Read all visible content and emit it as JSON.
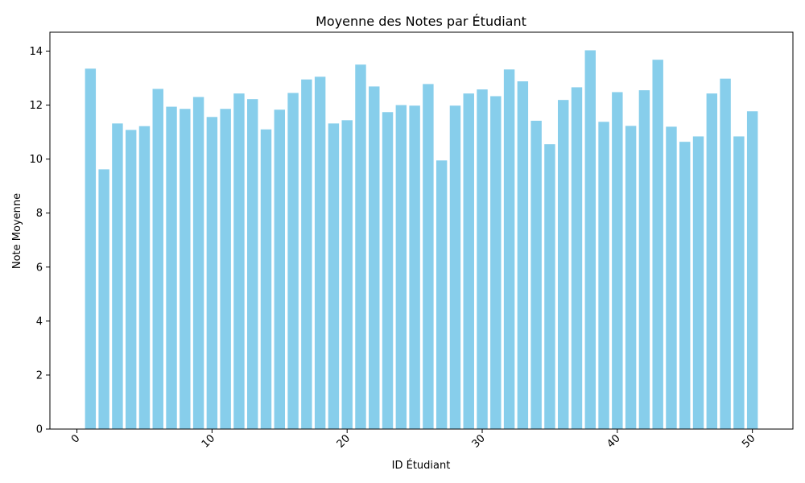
{
  "chart_data": {
    "type": "bar",
    "title": "Moyenne des Notes par Étudiant",
    "xlabel": "ID Étudiant",
    "ylabel": "Note Moyenne",
    "xlim": [
      -2,
      53
    ],
    "ylim": [
      0,
      14.7
    ],
    "xticks": [
      "0",
      "10",
      "20",
      "30",
      "40",
      "50"
    ],
    "yticks": [
      "0",
      "2",
      "4",
      "6",
      "8",
      "10",
      "12",
      "14"
    ],
    "bar_color": "#87CEEB",
    "grid": false,
    "x": [
      1,
      2,
      3,
      4,
      5,
      6,
      7,
      8,
      9,
      10,
      11,
      12,
      13,
      14,
      15,
      16,
      17,
      18,
      19,
      20,
      21,
      22,
      23,
      24,
      25,
      26,
      27,
      28,
      29,
      30,
      31,
      32,
      33,
      34,
      35,
      36,
      37,
      38,
      39,
      40,
      41,
      42,
      43,
      44,
      45,
      46,
      47,
      48,
      49,
      50
    ],
    "values": [
      13.35,
      9.62,
      11.32,
      11.08,
      11.22,
      12.6,
      11.94,
      11.86,
      12.3,
      11.56,
      11.86,
      12.43,
      12.22,
      11.1,
      11.83,
      12.45,
      12.95,
      13.05,
      11.32,
      11.44,
      13.5,
      12.69,
      11.74,
      12.0,
      11.98,
      12.78,
      9.95,
      11.98,
      12.43,
      12.58,
      12.33,
      13.32,
      12.88,
      11.42,
      10.55,
      12.19,
      12.66,
      14.03,
      11.38,
      12.48,
      11.23,
      12.55,
      13.68,
      11.2,
      10.64,
      10.84,
      12.43,
      12.98,
      10.84,
      11.77
    ]
  }
}
